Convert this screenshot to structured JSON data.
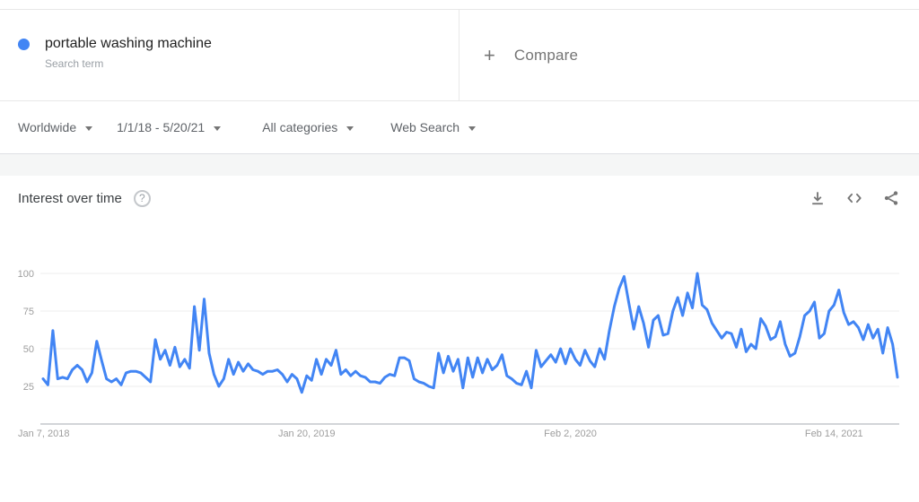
{
  "term_card": {
    "term": "portable washing machine",
    "term_type": "Search term",
    "dot_color": "#4285f4",
    "plus_icon": "+",
    "compare_label": "Compare"
  },
  "filters": {
    "region": "Worldwide",
    "date_range": "1/1/18 - 5/20/21",
    "category": "All categories",
    "search_type": "Web Search"
  },
  "chart_header": {
    "title": "Interest over time",
    "help_icon": "?",
    "icons": [
      "download-icon",
      "embed-icon",
      "share-icon"
    ]
  },
  "chart_data": {
    "type": "line",
    "title": "Interest over time",
    "series_name": "portable washing machine",
    "line_color": "#4285f4",
    "frequency": "weekly",
    "start_date": "Jan 7, 2018",
    "end_date": "May 16, 2021",
    "grid": true,
    "ylim": [
      0,
      100
    ],
    "y_ticks": [
      25,
      50,
      75,
      100
    ],
    "x_tick_labels": [
      "Jan 7, 2018",
      "Jan 20, 2019",
      "Feb 2, 2020",
      "Feb 14, 2021"
    ],
    "x_tick_indices": [
      0,
      54,
      108,
      162
    ],
    "values": [
      30,
      26,
      62,
      30,
      31,
      30,
      36,
      39,
      36,
      28,
      34,
      55,
      42,
      30,
      28,
      30,
      26,
      34,
      35,
      35,
      34,
      31,
      28,
      56,
      43,
      49,
      39,
      51,
      38,
      43,
      37,
      78,
      49,
      83,
      47,
      33,
      25,
      30,
      43,
      33,
      41,
      35,
      40,
      36,
      35,
      33,
      35,
      35,
      36,
      33,
      28,
      33,
      30,
      21,
      32,
      29,
      43,
      33,
      43,
      39,
      49,
      33,
      36,
      32,
      35,
      32,
      31,
      28,
      28,
      27,
      31,
      33,
      32,
      44,
      44,
      42,
      30,
      28,
      27,
      25,
      24,
      47,
      34,
      45,
      35,
      43,
      24,
      44,
      31,
      44,
      34,
      43,
      36,
      39,
      46,
      32,
      30,
      27,
      26,
      35,
      24,
      49,
      38,
      42,
      46,
      41,
      50,
      40,
      50,
      43,
      39,
      49,
      42,
      38,
      50,
      43,
      62,
      78,
      90,
      98,
      80,
      63,
      78,
      67,
      51,
      69,
      72,
      59,
      60,
      75,
      84,
      72,
      87,
      77,
      100,
      79,
      76,
      67,
      62,
      57,
      61,
      60,
      51,
      63,
      48,
      53,
      50,
      70,
      65,
      56,
      58,
      68,
      53,
      45,
      47,
      58,
      72,
      75,
      81,
      57,
      60,
      75,
      79,
      89,
      74,
      66,
      68,
      64,
      56,
      66,
      57,
      63,
      47,
      64,
      53,
      31
    ]
  },
  "colors": {
    "accent_blue": "#4285f4",
    "grid_line": "#ececec",
    "axis_line": "#d3d5d8",
    "axis_label": "#9e9e9e"
  }
}
